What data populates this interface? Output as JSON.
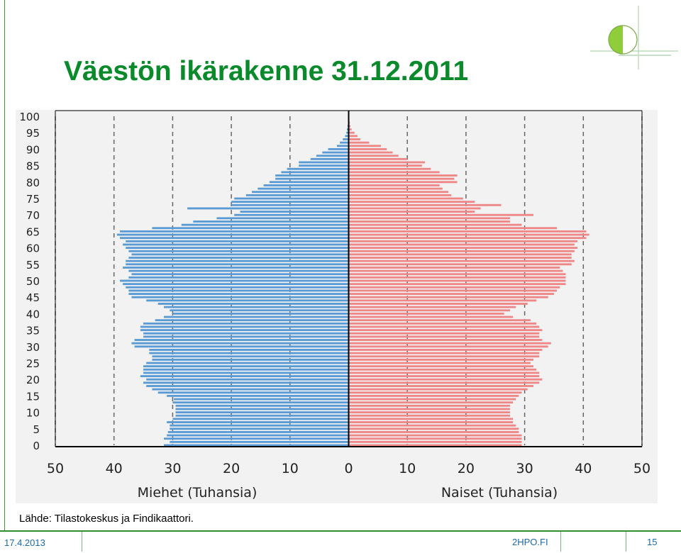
{
  "slide": {
    "title": "Väestön ikärakenne 31.12.2011",
    "source": "Lähde: Tilastokeskus ja Findikaattori.",
    "date": "17.4.2013",
    "site": "2HPO.FI",
    "page": "15"
  },
  "colors": {
    "title": "#0a8a2a",
    "men": "#5b9bd5",
    "women": "#ee8888",
    "grid": "#666666",
    "accent": "#2f8f2f"
  },
  "chart_data": {
    "type": "bar",
    "orientation": "horizontal-population-pyramid",
    "xlabel_left": "Miehet (Tuhansia)",
    "xlabel_right": "Naiset (Tuhansia)",
    "x_ticks": [
      "50",
      "40",
      "30",
      "20",
      "10",
      "0",
      "10",
      "20",
      "30",
      "40",
      "50"
    ],
    "y_ticks": [
      "0",
      "5",
      "10",
      "15",
      "20",
      "25",
      "30",
      "35",
      "40",
      "45",
      "50",
      "55",
      "60",
      "65",
      "70",
      "75",
      "80",
      "85",
      "90",
      "95",
      "100"
    ],
    "xlim": [
      -50,
      50
    ],
    "ylim": [
      0,
      100
    ],
    "grid": "vertical-dashed",
    "ages": [
      0,
      1,
      2,
      3,
      4,
      5,
      6,
      7,
      8,
      9,
      10,
      11,
      12,
      13,
      14,
      15,
      16,
      17,
      18,
      19,
      20,
      21,
      22,
      23,
      24,
      25,
      26,
      27,
      28,
      29,
      30,
      31,
      32,
      33,
      34,
      35,
      36,
      37,
      38,
      39,
      40,
      41,
      42,
      43,
      44,
      45,
      46,
      47,
      48,
      49,
      50,
      51,
      52,
      53,
      54,
      55,
      56,
      57,
      58,
      59,
      60,
      61,
      62,
      63,
      64,
      65,
      66,
      67,
      68,
      69,
      70,
      71,
      72,
      73,
      74,
      75,
      76,
      77,
      78,
      79,
      80,
      81,
      82,
      83,
      84,
      85,
      86,
      87,
      88,
      89,
      90,
      91,
      92,
      93,
      94,
      95,
      96,
      97,
      98,
      99,
      100
    ],
    "series": [
      {
        "name": "Miehet (Tuhansia)",
        "values": [
          31.5,
          30.5,
          31.5,
          31.0,
          30.8,
          30.5,
          30.5,
          31.0,
          30.0,
          29.5,
          29.5,
          29.5,
          29.5,
          30.0,
          29.8,
          31.0,
          32.5,
          33.5,
          34.5,
          35.0,
          34.5,
          35.5,
          35.0,
          35.0,
          35.0,
          34.5,
          33.5,
          33.5,
          34.0,
          34.0,
          36.5,
          37.0,
          36.5,
          35.0,
          35.0,
          35.5,
          35.5,
          35.0,
          33.0,
          31.5,
          30.0,
          30.5,
          31.5,
          32.5,
          34.5,
          37.0,
          37.5,
          37.5,
          38.0,
          38.5,
          39.0,
          37.5,
          37.0,
          37.5,
          38.5,
          38.0,
          38.0,
          37.5,
          37.0,
          37.5,
          38.0,
          38.5,
          38.0,
          39.0,
          39.5,
          39.0,
          33.5,
          28.5,
          26.5,
          22.5,
          19.5,
          18.5,
          27.5,
          20.0,
          20.0,
          19.5,
          17.5,
          16.5,
          15.5,
          14.5,
          13.5,
          12.5,
          12.5,
          11.5,
          10.5,
          8.5,
          8.5,
          6.5,
          5.5,
          4.5,
          3.5,
          2.0,
          1.5,
          1.0,
          0.6,
          0.4,
          0.3,
          0.2,
          0.1,
          0.1,
          0.0
        ]
      },
      {
        "name": "Naiset (Tuhansia)",
        "values": [
          29.5,
          29.5,
          29.5,
          29.5,
          29.0,
          29.0,
          28.5,
          28.0,
          28.0,
          27.5,
          27.5,
          27.5,
          27.5,
          28.0,
          28.5,
          29.0,
          29.5,
          30.5,
          31.5,
          32.5,
          33.0,
          32.5,
          32.5,
          32.0,
          31.5,
          31.0,
          31.5,
          32.5,
          32.5,
          33.0,
          34.0,
          34.5,
          33.0,
          32.5,
          32.5,
          33.0,
          32.5,
          32.0,
          31.0,
          28.0,
          26.5,
          27.5,
          28.5,
          30.5,
          32.0,
          34.0,
          35.0,
          35.5,
          36.0,
          37.0,
          37.0,
          37.0,
          37.0,
          36.5,
          36.0,
          38.0,
          38.5,
          38.0,
          38.0,
          38.5,
          39.0,
          38.5,
          39.0,
          40.5,
          41.0,
          40.5,
          35.5,
          29.5,
          27.5,
          27.5,
          31.5,
          21.5,
          22.5,
          26.0,
          21.5,
          19.5,
          17.5,
          17.0,
          16.0,
          15.5,
          18.5,
          18.0,
          18.5,
          15.5,
          14.0,
          12.5,
          13.0,
          10.0,
          8.5,
          7.5,
          6.5,
          5.5,
          3.5,
          2.0,
          1.5,
          1.0,
          0.5,
          0.3,
          0.2,
          0.1,
          0.0
        ]
      }
    ]
  }
}
